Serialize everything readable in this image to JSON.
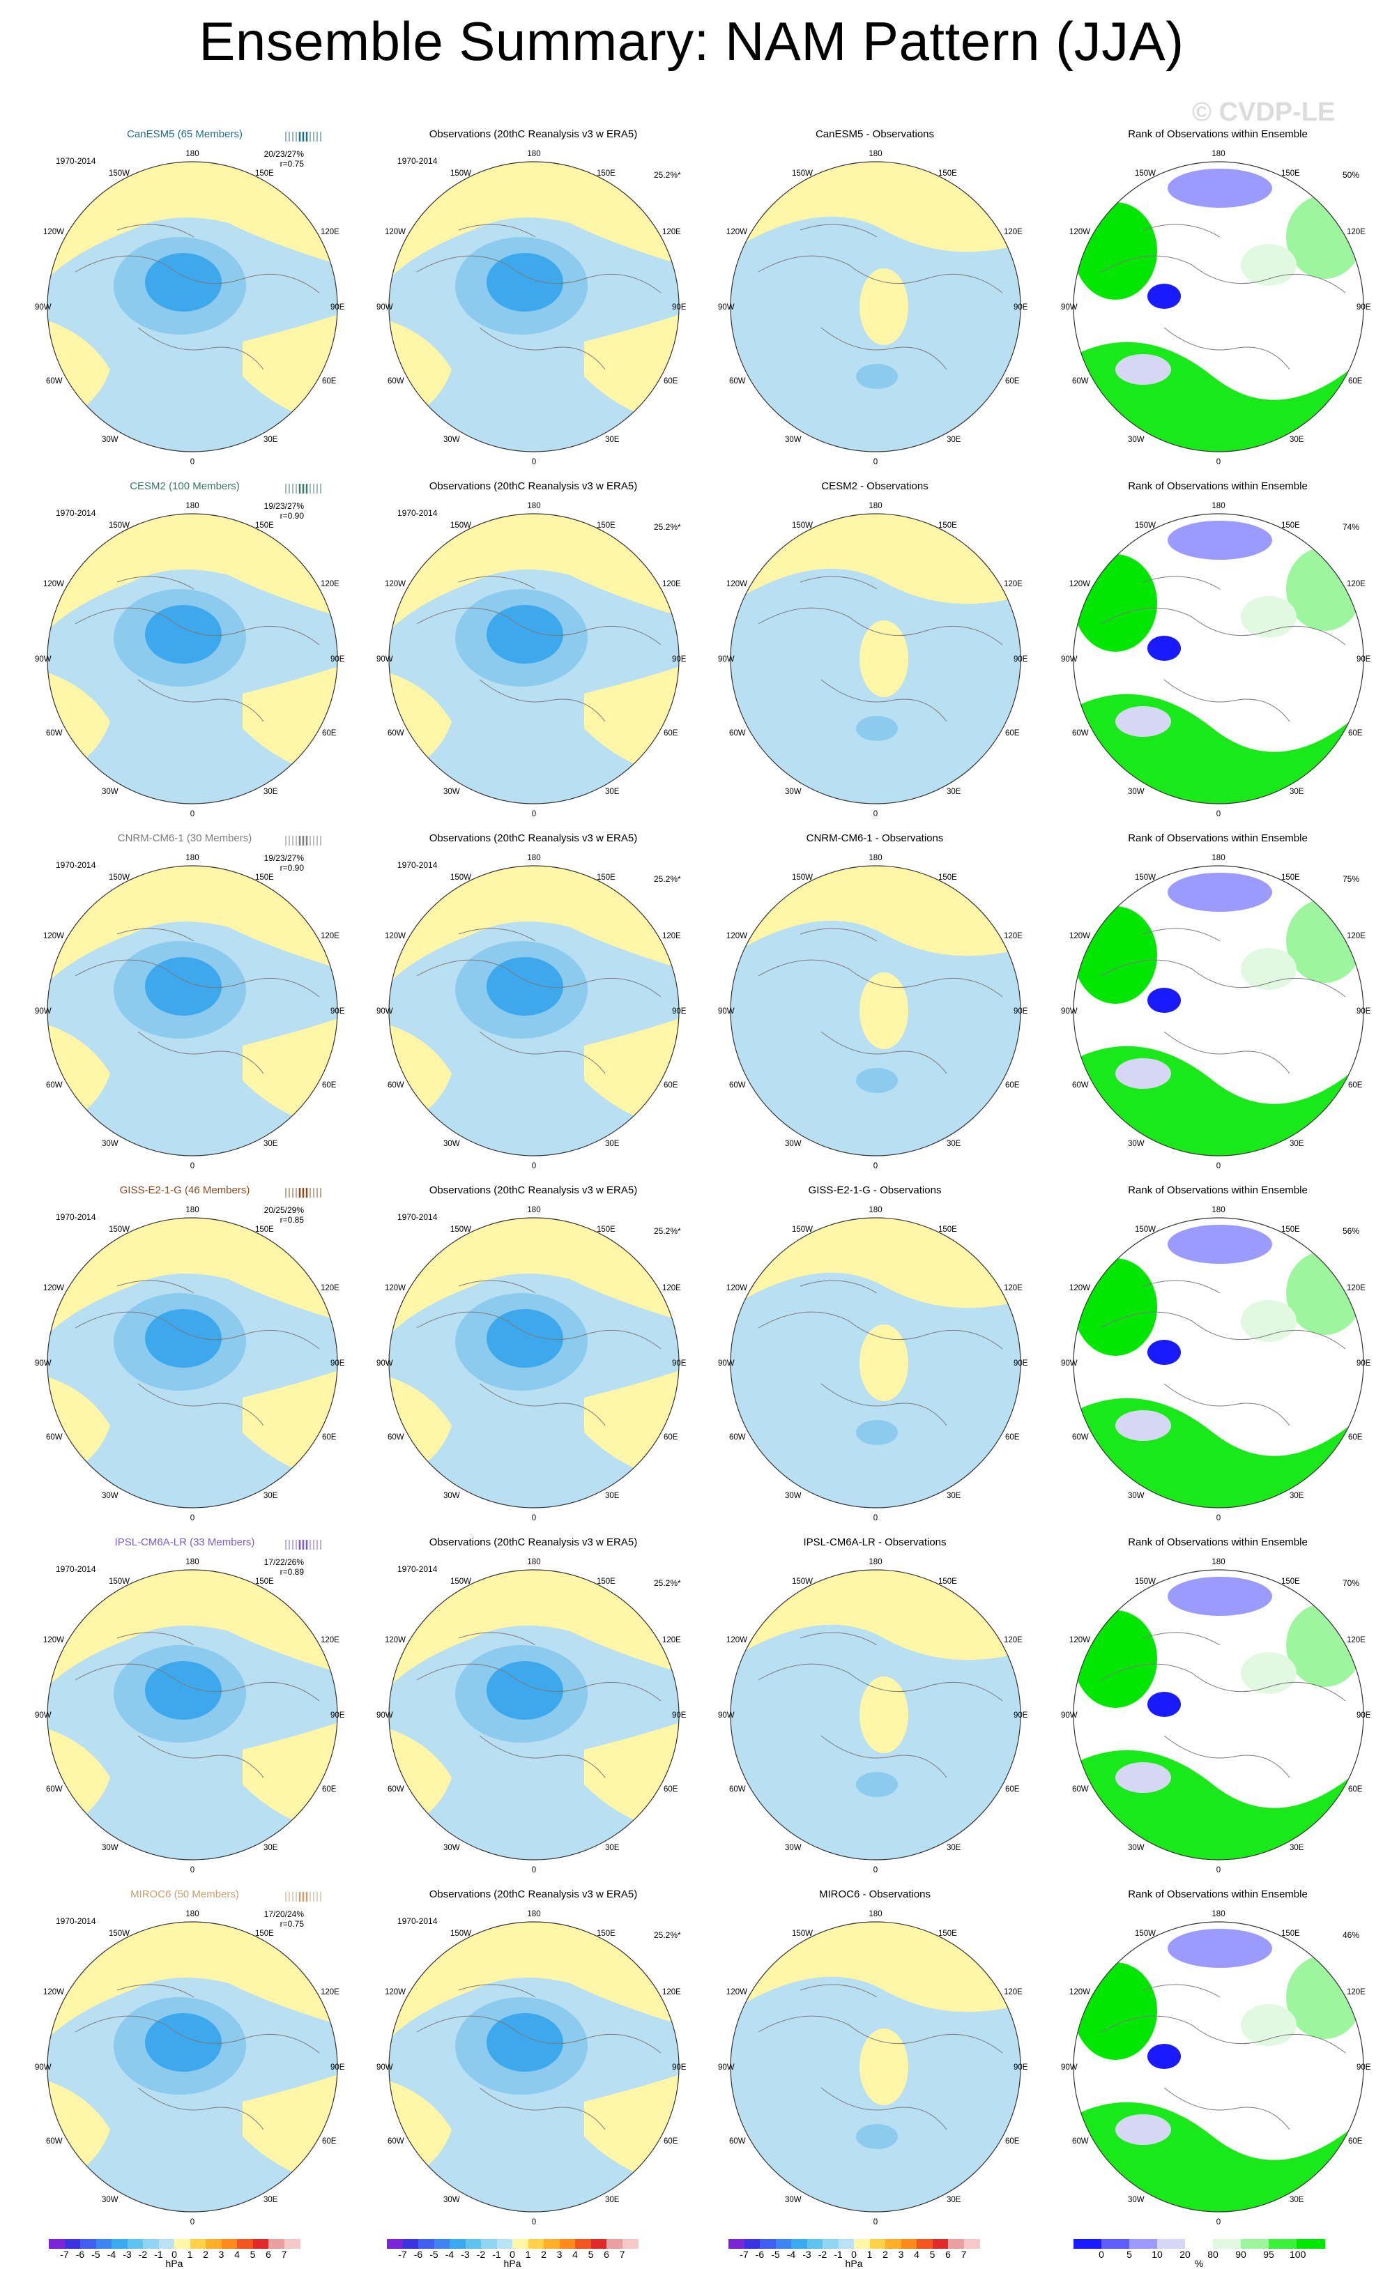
{
  "page_title": "Ensemble Summary: NAM Pattern (JJA)",
  "watermark": "© CVDP-LE",
  "obs_title": "Observations (20thC Reanalysis v3 w ERA5)",
  "rank_title": "Rank of Observations within Ensemble",
  "period": "1970-2014",
  "obs_pct": "25.2%*",
  "lon_labels": {
    "top": "180",
    "bottom": "0",
    "left": "90W",
    "right": "90E",
    "upper_left_1": "150W",
    "upper_left_2": "120W",
    "upper_right_1": "150E",
    "upper_right_2": "120E",
    "lower_left_1": "60W",
    "lower_left_2": "30W",
    "lower_right_1": "60E",
    "lower_right_2": "30E"
  },
  "models": [
    {
      "name": "CanESM5 (65 Members)",
      "diff_title": "CanESM5 - Observations",
      "color": "#1f6f8b",
      "stats_line1": "20/23/27%",
      "stats_line2": "r=0.75",
      "rank_pct": "50%"
    },
    {
      "name": "CESM2 (100 Members)",
      "diff_title": "CESM2 - Observations",
      "color": "#3a7a60",
      "stats_line1": "19/23/27%",
      "stats_line2": "r=0.90",
      "rank_pct": "74%"
    },
    {
      "name": "CNRM-CM6-1 (30 Members)",
      "diff_title": "CNRM-CM6-1 - Observations",
      "color": "#7d7d7d",
      "stats_line1": "19/23/27%",
      "stats_line2": "r=0.90",
      "rank_pct": "75%"
    },
    {
      "name": "GISS-E2-1-G (46 Members)",
      "diff_title": "GISS-E2-1-G - Observations",
      "color": "#8b4a1e",
      "stats_line1": "20/25/29%",
      "stats_line2": "r=0.85",
      "rank_pct": "56%"
    },
    {
      "name": "IPSL-CM6A-LR (33 Members)",
      "diff_title": "IPSL-CM6A-LR - Observations",
      "color": "#7a5cc8",
      "stats_line1": "17/22/26%",
      "stats_line2": "r=0.89",
      "rank_pct": "70%"
    },
    {
      "name": "MIROC6 (50 Members)",
      "diff_title": "MIROC6 - Observations",
      "color": "#c8a070",
      "stats_line1": "17/20/24%",
      "stats_line2": "r=0.75",
      "rank_pct": "46%"
    }
  ],
  "colorbar_hpa": {
    "unit": "hPa",
    "ticks": [
      "-7",
      "-6",
      "-5",
      "-4",
      "-3",
      "-2",
      "-1",
      "0",
      "1",
      "2",
      "3",
      "4",
      "5",
      "6",
      "7"
    ],
    "colors": [
      "#7b26d6",
      "#3b33e0",
      "#3f5ff0",
      "#3d86f2",
      "#3aaaf0",
      "#5fc3f0",
      "#8fd6f2",
      "#b9e2f4",
      "#fff6a8",
      "#ffd24a",
      "#ffae2a",
      "#ff8a1c",
      "#f0561e",
      "#e02a2a",
      "#e8a0a0",
      "#f5c8c8"
    ]
  },
  "colorbar_rank": {
    "unit": "%",
    "ticks": [
      "0",
      "5",
      "10",
      "20",
      "80",
      "90",
      "95",
      "100"
    ],
    "colors": [
      "#1a1aff",
      "#5c5cff",
      "#9a9aff",
      "#d6d6f5",
      "#ffffff",
      "#e1f8e1",
      "#9df59d",
      "#3cf03c",
      "#00e600"
    ]
  }
}
